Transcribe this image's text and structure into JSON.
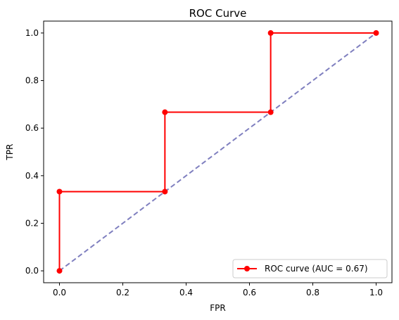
{
  "chart_data": {
    "type": "line",
    "title": "ROC Curve",
    "xlabel": "FPR",
    "ylabel": "TPR",
    "xlim": [
      -0.05,
      1.05
    ],
    "ylim": [
      -0.05,
      1.05
    ],
    "xticks": [
      0.0,
      0.2,
      0.4,
      0.6,
      0.8,
      1.0
    ],
    "yticks": [
      0.0,
      0.2,
      0.4,
      0.6,
      0.8,
      1.0
    ],
    "xtick_labels": [
      "0.0",
      "0.2",
      "0.4",
      "0.6",
      "0.8",
      "1.0"
    ],
    "ytick_labels": [
      "0.0",
      "0.2",
      "0.4",
      "0.6",
      "0.8",
      "1.0"
    ],
    "grid": false,
    "legend_position": "lower-right",
    "series": [
      {
        "name": "ROC curve (AUC = 0.67)",
        "color": "#ff0000",
        "style": "solid-with-markers",
        "x": [
          0.0,
          0.0,
          0.333,
          0.333,
          0.667,
          0.667,
          1.0
        ],
        "y": [
          0.0,
          0.333,
          0.333,
          0.667,
          0.667,
          1.0,
          1.0
        ]
      },
      {
        "color": "#7f7fbf",
        "style": "dashed",
        "x": [
          0.0,
          1.0
        ],
        "y": [
          0.0,
          1.0
        ]
      }
    ]
  }
}
